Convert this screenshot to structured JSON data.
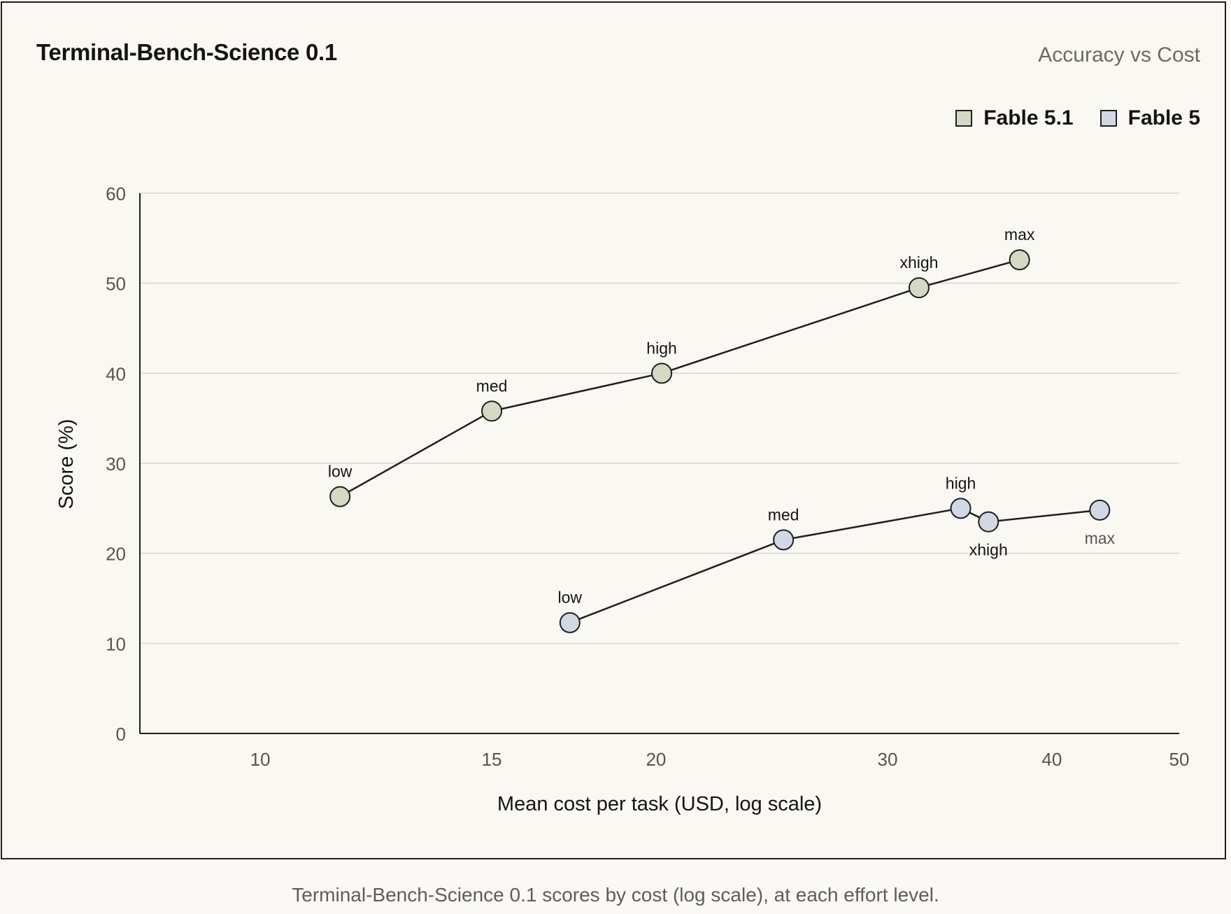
{
  "caption": "Terminal-Bench-Science 0.1 scores by cost (log scale), at each effort level.",
  "chart_data": {
    "type": "scatter",
    "title": "Terminal-Bench-Science 0.1",
    "subtitle": "Accuracy vs Cost",
    "xlabel": "Mean cost per task (USD, log scale)",
    "ylabel": "Score (%)",
    "xscale": "log",
    "xlim": [
      8.1,
      50
    ],
    "ylim": [
      0,
      60
    ],
    "xticks": [
      10,
      15,
      20,
      30,
      40,
      50
    ],
    "yticks": [
      0,
      10,
      20,
      30,
      40,
      50,
      60
    ],
    "grid": "horizontal",
    "legend_position": "top-right",
    "series": [
      {
        "name": "Fable 5.1",
        "color": "#d5d9c4",
        "points": [
          {
            "label": "low",
            "x": 11.5,
            "y": 26.3
          },
          {
            "label": "med",
            "x": 15.0,
            "y": 35.8
          },
          {
            "label": "high",
            "x": 20.2,
            "y": 40.0
          },
          {
            "label": "xhigh",
            "x": 31.7,
            "y": 49.5
          },
          {
            "label": "max",
            "x": 37.8,
            "y": 52.6
          }
        ]
      },
      {
        "name": "Fable 5",
        "color": "#cfd8e3",
        "points": [
          {
            "label": "low",
            "x": 17.2,
            "y": 12.3
          },
          {
            "label": "med",
            "x": 25.0,
            "y": 21.5
          },
          {
            "label": "high",
            "x": 34.1,
            "y": 25.0
          },
          {
            "label": "xhigh",
            "x": 35.8,
            "y": 23.5
          },
          {
            "label": "max",
            "x": 43.5,
            "y": 24.8
          }
        ]
      }
    ]
  }
}
